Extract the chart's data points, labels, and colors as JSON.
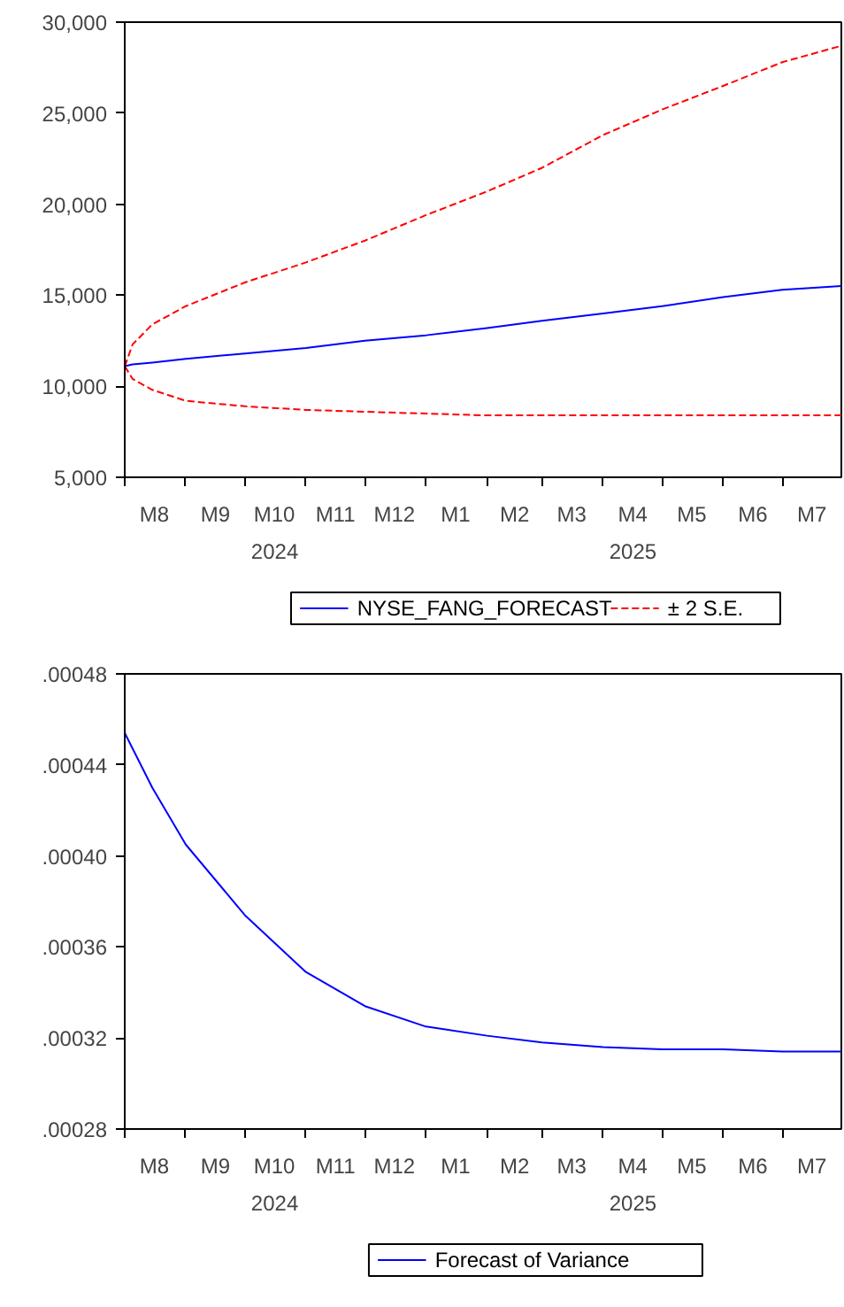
{
  "chart_data": [
    {
      "type": "line",
      "x": [
        "2024-08-01",
        "2024-08-05",
        "2024-08-15",
        "2024-09-01",
        "2024-10-01",
        "2024-11-01",
        "2024-12-01",
        "2025-01-01",
        "2025-02-01",
        "2025-03-01",
        "2025-04-01",
        "2025-05-01",
        "2025-06-01",
        "2025-07-01",
        "2025-07-31"
      ],
      "series": [
        {
          "name": "NYSE_FANG_FORECAST",
          "color": "#0000ff",
          "line_style": "solid",
          "values": [
            11100,
            11200,
            11300,
            11500,
            11800,
            12100,
            12500,
            12800,
            13200,
            13600,
            14000,
            14400,
            14900,
            15300,
            15500
          ]
        },
        {
          "name": "± 2 S.E.",
          "color": "#ff0000",
          "line_style": "dashed",
          "values": [
            11100,
            12300,
            13400,
            14400,
            15700,
            16800,
            18000,
            19400,
            20700,
            22000,
            23800,
            25200,
            26500,
            27800,
            28700
          ]
        },
        {
          "name": null,
          "color": "#ff0000",
          "line_style": "dashed",
          "values": [
            11100,
            10400,
            9800,
            9200,
            8900,
            8700,
            8600,
            8500,
            8400,
            8400,
            8400,
            8400,
            8400,
            8400,
            8400
          ]
        }
      ],
      "xlim": [
        "2024-08-01",
        "2025-07-31"
      ],
      "xticks": [
        {
          "value": "2024-08-01",
          "label": null
        },
        {
          "value": "2024-08-16",
          "label": "M8"
        },
        {
          "value": "2024-09-01",
          "label": null
        },
        {
          "value": "2024-09-16",
          "label": "M9"
        },
        {
          "value": "2024-10-01",
          "label": null
        },
        {
          "value": "2024-10-16",
          "label": "M10"
        },
        {
          "value": "2024-11-01",
          "label": null
        },
        {
          "value": "2024-11-16",
          "label": "M11"
        },
        {
          "value": "2024-12-01",
          "label": null
        },
        {
          "value": "2024-12-16",
          "label": "M12"
        },
        {
          "value": "2025-01-01",
          "label": null
        },
        {
          "value": "2025-01-16",
          "label": "M1"
        },
        {
          "value": "2025-02-01",
          "label": null
        },
        {
          "value": "2025-02-15",
          "label": "M2"
        },
        {
          "value": "2025-03-01",
          "label": null
        },
        {
          "value": "2025-03-16",
          "label": "M3"
        },
        {
          "value": "2025-04-01",
          "label": null
        },
        {
          "value": "2025-04-16",
          "label": "M4"
        },
        {
          "value": "2025-05-01",
          "label": null
        },
        {
          "value": "2025-05-16",
          "label": "M5"
        },
        {
          "value": "2025-06-01",
          "label": null
        },
        {
          "value": "2025-06-16",
          "label": "M6"
        },
        {
          "value": "2025-07-01",
          "label": null
        },
        {
          "value": "2025-07-16",
          "label": "M7"
        }
      ],
      "ylim": [
        5000,
        30000
      ],
      "yticks": [
        {
          "value": 5000,
          "label": "5,000"
        },
        {
          "value": 10000,
          "label": "10,000"
        },
        {
          "value": 15000,
          "label": "15,000"
        },
        {
          "value": 20000,
          "label": "20,000"
        },
        {
          "value": 25000,
          "label": "25,000"
        },
        {
          "value": 30000,
          "label": "30,000"
        }
      ],
      "annotations": [
        "2024",
        "2025"
      ],
      "grid": false,
      "legend": "bottom",
      "marker": "none"
    },
    {
      "type": "line",
      "x": [
        "2024-08-01",
        "2024-08-15",
        "2024-09-01",
        "2024-10-01",
        "2024-11-01",
        "2024-12-01",
        "2025-01-01",
        "2025-02-01",
        "2025-03-01",
        "2025-04-01",
        "2025-05-01",
        "2025-06-01",
        "2025-07-01",
        "2025-07-31"
      ],
      "series": [
        {
          "name": "Forecast of Variance",
          "color": "#0000ff",
          "line_style": "solid",
          "values": [
            0.000454,
            0.00043,
            0.000405,
            0.000374,
            0.000349,
            0.000334,
            0.000325,
            0.000321,
            0.000318,
            0.000316,
            0.000315,
            0.000315,
            0.000314,
            0.000314
          ]
        }
      ],
      "xlim": [
        "2024-08-01",
        "2025-07-31"
      ],
      "xticks": [
        {
          "value": "2024-08-01",
          "label": null
        },
        {
          "value": "2024-08-16",
          "label": "M8"
        },
        {
          "value": "2024-09-01",
          "label": null
        },
        {
          "value": "2024-09-16",
          "label": "M9"
        },
        {
          "value": "2024-10-01",
          "label": null
        },
        {
          "value": "2024-10-16",
          "label": "M10"
        },
        {
          "value": "2024-11-01",
          "label": null
        },
        {
          "value": "2024-11-16",
          "label": "M11"
        },
        {
          "value": "2024-12-01",
          "label": null
        },
        {
          "value": "2024-12-16",
          "label": "M12"
        },
        {
          "value": "2025-01-01",
          "label": null
        },
        {
          "value": "2025-01-16",
          "label": "M1"
        },
        {
          "value": "2025-02-01",
          "label": null
        },
        {
          "value": "2025-02-15",
          "label": "M2"
        },
        {
          "value": "2025-03-01",
          "label": null
        },
        {
          "value": "2025-03-16",
          "label": "M3"
        },
        {
          "value": "2025-04-01",
          "label": null
        },
        {
          "value": "2025-04-16",
          "label": "M4"
        },
        {
          "value": "2025-05-01",
          "label": null
        },
        {
          "value": "2025-05-16",
          "label": "M5"
        },
        {
          "value": "2025-06-01",
          "label": null
        },
        {
          "value": "2025-06-16",
          "label": "M6"
        },
        {
          "value": "2025-07-01",
          "label": null
        },
        {
          "value": "2025-07-16",
          "label": "M7"
        }
      ],
      "ylim": [
        0.00028,
        0.00048
      ],
      "yticks": [
        {
          "value": 0.00028,
          "label": ".00028"
        },
        {
          "value": 0.00032,
          "label": ".00032"
        },
        {
          "value": 0.00036,
          "label": ".00036"
        },
        {
          "value": 0.0004,
          "label": ".00040"
        },
        {
          "value": 0.00044,
          "label": ".00044"
        },
        {
          "value": 0.00048,
          "label": ".00048"
        }
      ],
      "annotations": [
        "2024",
        "2025"
      ],
      "grid": false,
      "legend": "bottom",
      "marker": "none"
    }
  ]
}
